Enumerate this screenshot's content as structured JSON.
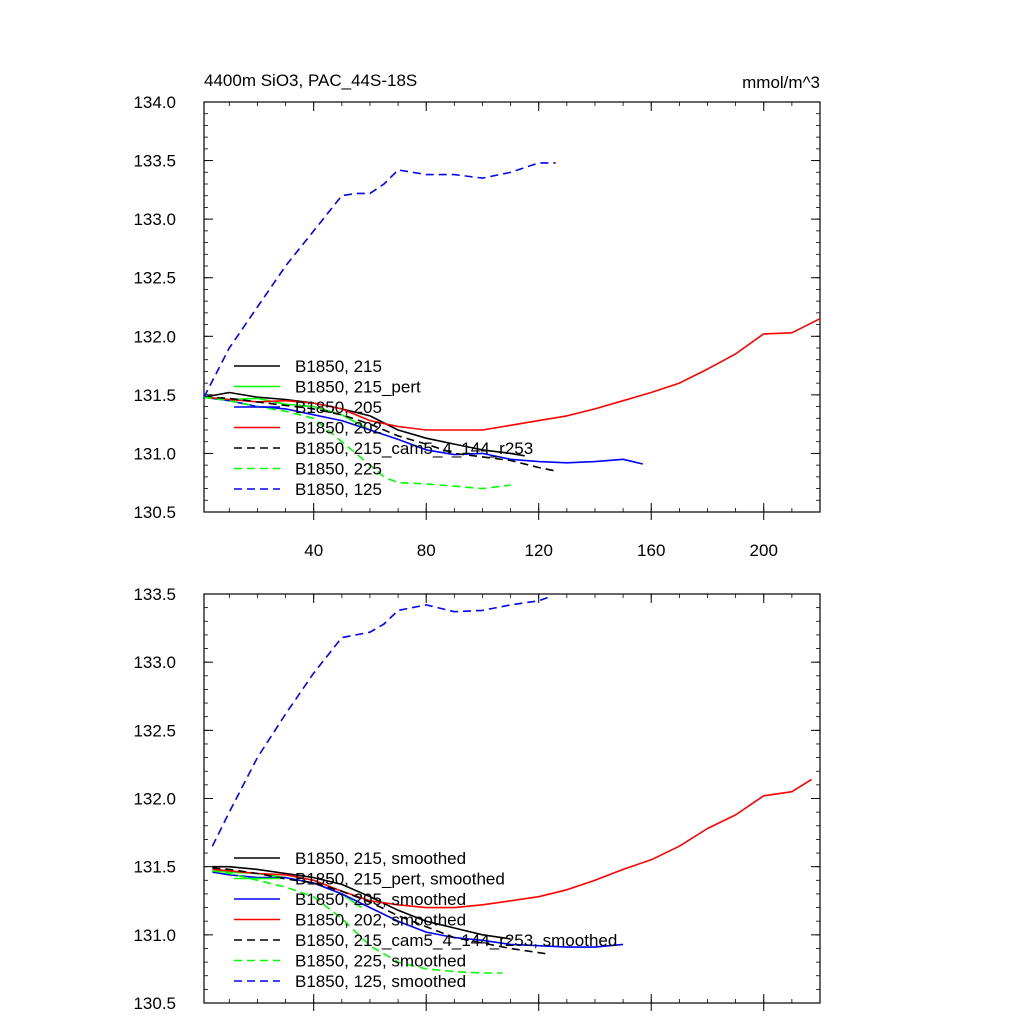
{
  "figure": {
    "title": "4400m SiO3, PAC_44S-18S",
    "units": "mmol/m^3"
  },
  "chart_data": [
    {
      "type": "line",
      "panel": "raw",
      "title": "4400m SiO3, PAC_44S-18S",
      "units": "mmol/m^3",
      "xlim": [
        1,
        220
      ],
      "ylim": [
        130.5,
        134.0
      ],
      "xticks": [
        40,
        80,
        120,
        160,
        200
      ],
      "yticks": [
        130.5,
        131.0,
        131.5,
        132.0,
        132.5,
        133.0,
        133.5,
        134.0
      ],
      "ytick_labels": [
        "130.5",
        "131.0",
        "131.5",
        "132.0",
        "132.5",
        "133.0",
        "133.5",
        "134.0"
      ],
      "legend_position": "lower-left",
      "series": [
        {
          "name": "B1850, 215",
          "color": "#000000",
          "dash": "solid",
          "x": [
            1,
            10,
            20,
            30,
            40,
            50,
            60,
            70,
            80,
            90,
            100,
            110,
            115
          ],
          "y": [
            131.48,
            131.52,
            131.48,
            131.46,
            131.43,
            131.38,
            131.32,
            131.2,
            131.13,
            131.08,
            131.03,
            131.0,
            130.98
          ]
        },
        {
          "name": "B1850, 215_pert",
          "color": "#00ff00",
          "dash": "solid",
          "x": [
            1,
            10,
            20,
            30,
            40,
            50,
            60
          ],
          "y": [
            131.48,
            131.46,
            131.47,
            131.42,
            131.4,
            131.33,
            131.2
          ]
        },
        {
          "name": "B1850, 205",
          "color": "#0000ff",
          "dash": "solid",
          "x": [
            1,
            10,
            20,
            30,
            40,
            50,
            60,
            70,
            80,
            90,
            100,
            110,
            120,
            130,
            140,
            150,
            157
          ],
          "y": [
            131.48,
            131.45,
            131.4,
            131.38,
            131.33,
            131.28,
            131.2,
            131.12,
            131.03,
            130.99,
            131.0,
            130.95,
            130.93,
            130.92,
            130.93,
            130.95,
            130.91
          ]
        },
        {
          "name": "B1850, 202",
          "color": "#ff0000",
          "dash": "solid",
          "x": [
            1,
            10,
            20,
            30,
            40,
            50,
            60,
            70,
            80,
            90,
            100,
            110,
            120,
            130,
            140,
            150,
            160,
            170,
            180,
            190,
            200,
            210,
            220
          ],
          "y": [
            131.48,
            131.46,
            131.44,
            131.45,
            131.43,
            131.38,
            131.28,
            131.23,
            131.2,
            131.2,
            131.2,
            131.24,
            131.28,
            131.32,
            131.38,
            131.45,
            131.52,
            131.6,
            131.72,
            131.85,
            132.02,
            132.03,
            132.15
          ]
        },
        {
          "name": "B1850, 215_cam5_4_144_r253",
          "color": "#000000",
          "dash": "dashed",
          "x": [
            1,
            10,
            20,
            30,
            40,
            50,
            60,
            70,
            80,
            90,
            100,
            110,
            120,
            126
          ],
          "y": [
            131.48,
            131.47,
            131.44,
            131.41,
            131.38,
            131.33,
            131.25,
            131.15,
            131.08,
            131.0,
            130.97,
            130.94,
            130.88,
            130.85
          ]
        },
        {
          "name": "B1850, 225",
          "color": "#00ff00",
          "dash": "dashed",
          "x": [
            1,
            10,
            20,
            30,
            40,
            50,
            60,
            65,
            70,
            80,
            90,
            100,
            110
          ],
          "y": [
            131.48,
            131.45,
            131.4,
            131.36,
            131.3,
            131.1,
            130.9,
            130.8,
            130.75,
            130.74,
            130.72,
            130.7,
            130.73
          ]
        },
        {
          "name": "B1850, 125",
          "color": "#0000ff",
          "dash": "dashed",
          "x": [
            1,
            10,
            20,
            30,
            40,
            50,
            55,
            60,
            65,
            70,
            80,
            90,
            100,
            110,
            120,
            126
          ],
          "y": [
            131.48,
            131.9,
            132.25,
            132.6,
            132.9,
            133.2,
            133.22,
            133.22,
            133.3,
            133.42,
            133.38,
            133.38,
            133.35,
            133.4,
            133.48,
            133.48
          ]
        }
      ]
    },
    {
      "type": "line",
      "panel": "smoothed",
      "xlim": [
        1,
        220
      ],
      "ylim": [
        130.5,
        133.5
      ],
      "yticks": [
        130.5,
        131.0,
        131.5,
        132.0,
        132.5,
        133.0,
        133.5
      ],
      "ytick_labels": [
        "130.5",
        "131.0",
        "131.5",
        "132.0",
        "132.5",
        "133.0",
        "133.5"
      ],
      "legend_position": "lower-left",
      "series": [
        {
          "name": "B1850, 215, smoothed",
          "color": "#000000",
          "dash": "solid",
          "x": [
            4,
            10,
            20,
            30,
            40,
            50,
            60,
            70,
            80,
            90,
            100,
            110
          ],
          "y": [
            131.5,
            131.5,
            131.48,
            131.45,
            131.42,
            131.37,
            131.28,
            131.18,
            131.1,
            131.05,
            131.0,
            130.97
          ]
        },
        {
          "name": "B1850, 215_pert, smoothed",
          "color": "#00ff00",
          "dash": "solid",
          "x": [
            4,
            10,
            20,
            30,
            40,
            50,
            57
          ],
          "y": [
            131.47,
            131.46,
            131.45,
            131.42,
            131.38,
            131.3,
            131.2
          ]
        },
        {
          "name": "B1850, 205, smoothed",
          "color": "#0000ff",
          "dash": "solid",
          "x": [
            4,
            10,
            20,
            30,
            40,
            50,
            60,
            70,
            80,
            90,
            100,
            110,
            120,
            130,
            140,
            150
          ],
          "y": [
            131.46,
            131.44,
            131.42,
            131.42,
            131.38,
            131.3,
            131.2,
            131.1,
            131.02,
            130.98,
            130.96,
            130.93,
            130.92,
            130.91,
            130.91,
            130.93
          ]
        },
        {
          "name": "B1850, 202, smoothed",
          "color": "#ff0000",
          "dash": "solid",
          "x": [
            4,
            10,
            20,
            30,
            40,
            50,
            60,
            70,
            80,
            90,
            100,
            110,
            120,
            130,
            140,
            150,
            160,
            170,
            180,
            190,
            200,
            210,
            217
          ],
          "y": [
            131.48,
            131.47,
            131.45,
            131.44,
            131.4,
            131.32,
            131.25,
            131.22,
            131.2,
            131.2,
            131.22,
            131.25,
            131.28,
            131.33,
            131.4,
            131.48,
            131.55,
            131.65,
            131.78,
            131.88,
            132.02,
            132.05,
            132.14
          ]
        },
        {
          "name": "B1850, 215_cam5_4_144_r253, smoothed",
          "color": "#000000",
          "dash": "dashed",
          "x": [
            4,
            10,
            20,
            30,
            40,
            50,
            60,
            70,
            80,
            90,
            100,
            110,
            123
          ],
          "y": [
            131.49,
            131.48,
            131.45,
            131.41,
            131.38,
            131.32,
            131.24,
            131.14,
            131.06,
            130.98,
            130.94,
            130.9,
            130.86
          ]
        },
        {
          "name": "B1850, 225, smoothed",
          "color": "#00ff00",
          "dash": "dashed",
          "x": [
            4,
            10,
            20,
            30,
            40,
            50,
            60,
            70,
            80,
            90,
            100,
            107
          ],
          "y": [
            131.47,
            131.45,
            131.4,
            131.35,
            131.28,
            131.12,
            130.92,
            130.8,
            130.75,
            130.73,
            130.72,
            130.72
          ]
        },
        {
          "name": "B1850, 125, smoothed",
          "color": "#0000ff",
          "dash": "dashed",
          "x": [
            4,
            10,
            20,
            30,
            40,
            50,
            60,
            65,
            70,
            80,
            90,
            100,
            110,
            120,
            124
          ],
          "y": [
            131.65,
            131.9,
            132.3,
            132.62,
            132.92,
            133.18,
            133.22,
            133.28,
            133.38,
            133.42,
            133.37,
            133.38,
            133.42,
            133.45,
            133.48
          ]
        }
      ]
    }
  ]
}
